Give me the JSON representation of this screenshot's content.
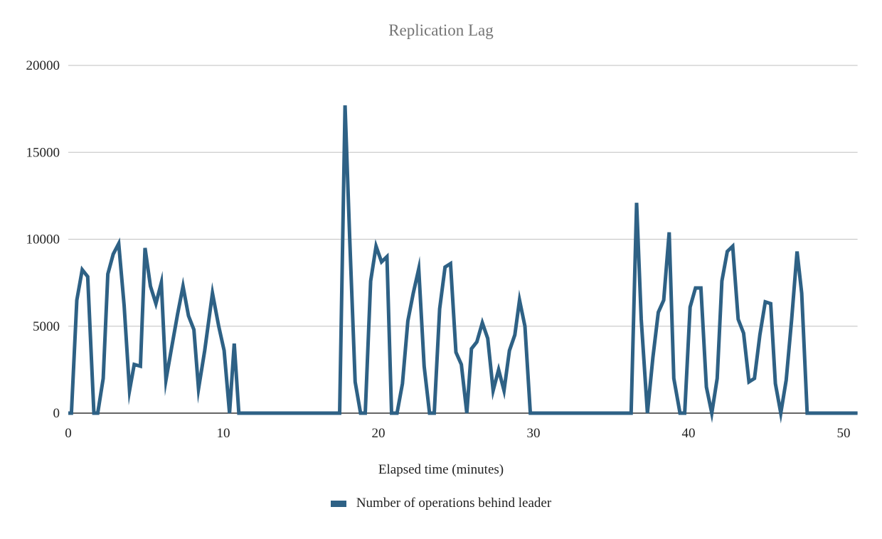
{
  "chart_data": {
    "type": "line",
    "title": "Replication Lag",
    "xlabel": "Elapsed time (minutes)",
    "ylabel": "",
    "xlim": [
      0,
      50.9
    ],
    "ylim": [
      0,
      20000
    ],
    "x_ticks": [
      0,
      10,
      20,
      30,
      40,
      50
    ],
    "y_ticks": [
      0,
      5000,
      10000,
      15000,
      20000
    ],
    "grid": {
      "horizontal": true,
      "vertical": false,
      "color": "#cccccc"
    },
    "legend_position": "bottom",
    "series": [
      {
        "name": "Number of operations behind leader",
        "color": "#2e6185",
        "points": [
          [
            0.0,
            0
          ],
          [
            0.2,
            0
          ],
          [
            0.55,
            6500
          ],
          [
            0.9,
            8250
          ],
          [
            1.25,
            7850
          ],
          [
            1.65,
            0
          ],
          [
            1.9,
            0
          ],
          [
            2.25,
            2000
          ],
          [
            2.55,
            8000
          ],
          [
            2.9,
            9150
          ],
          [
            3.25,
            9750
          ],
          [
            3.6,
            6200
          ],
          [
            3.95,
            1300
          ],
          [
            4.25,
            2800
          ],
          [
            4.65,
            2700
          ],
          [
            4.95,
            9500
          ],
          [
            5.3,
            7300
          ],
          [
            5.65,
            6300
          ],
          [
            6.0,
            7500
          ],
          [
            6.3,
            1900
          ],
          [
            6.65,
            3700
          ],
          [
            7.05,
            5700
          ],
          [
            7.4,
            7300
          ],
          [
            7.75,
            5600
          ],
          [
            8.1,
            4800
          ],
          [
            8.4,
            1400
          ],
          [
            8.8,
            3600
          ],
          [
            9.3,
            6900
          ],
          [
            9.7,
            5000
          ],
          [
            10.05,
            3600
          ],
          [
            10.4,
            0
          ],
          [
            10.7,
            4000
          ],
          [
            11.0,
            0
          ],
          [
            17.5,
            0
          ],
          [
            17.85,
            17700
          ],
          [
            18.15,
            10000
          ],
          [
            18.5,
            1800
          ],
          [
            18.85,
            0
          ],
          [
            19.15,
            0
          ],
          [
            19.5,
            7600
          ],
          [
            19.85,
            9600
          ],
          [
            20.2,
            8700
          ],
          [
            20.55,
            9000
          ],
          [
            20.85,
            0
          ],
          [
            21.2,
            0
          ],
          [
            21.55,
            1700
          ],
          [
            21.9,
            5300
          ],
          [
            22.25,
            6900
          ],
          [
            22.6,
            8300
          ],
          [
            22.95,
            2700
          ],
          [
            23.3,
            0
          ],
          [
            23.6,
            0
          ],
          [
            23.95,
            6000
          ],
          [
            24.3,
            8400
          ],
          [
            24.65,
            8600
          ],
          [
            25.0,
            3500
          ],
          [
            25.35,
            2800
          ],
          [
            25.7,
            0
          ],
          [
            26.0,
            3700
          ],
          [
            26.35,
            4100
          ],
          [
            26.7,
            5200
          ],
          [
            27.05,
            4300
          ],
          [
            27.4,
            1300
          ],
          [
            27.75,
            2500
          ],
          [
            28.1,
            1300
          ],
          [
            28.45,
            3600
          ],
          [
            28.8,
            4500
          ],
          [
            29.1,
            6500
          ],
          [
            29.45,
            5000
          ],
          [
            29.8,
            0
          ],
          [
            36.3,
            0
          ],
          [
            36.65,
            12100
          ],
          [
            36.95,
            5400
          ],
          [
            37.35,
            0
          ],
          [
            37.7,
            3200
          ],
          [
            38.05,
            5800
          ],
          [
            38.4,
            6500
          ],
          [
            38.75,
            10400
          ],
          [
            39.05,
            2000
          ],
          [
            39.45,
            0
          ],
          [
            39.75,
            0
          ],
          [
            40.1,
            6100
          ],
          [
            40.45,
            7200
          ],
          [
            40.8,
            7200
          ],
          [
            41.15,
            1500
          ],
          [
            41.5,
            0
          ],
          [
            41.85,
            2000
          ],
          [
            42.15,
            7600
          ],
          [
            42.5,
            9300
          ],
          [
            42.85,
            9600
          ],
          [
            43.2,
            5400
          ],
          [
            43.55,
            4600
          ],
          [
            43.9,
            1800
          ],
          [
            44.25,
            2000
          ],
          [
            44.6,
            4500
          ],
          [
            44.95,
            6400
          ],
          [
            45.3,
            6300
          ],
          [
            45.6,
            1700
          ],
          [
            45.95,
            0
          ],
          [
            46.3,
            1900
          ],
          [
            46.65,
            5400
          ],
          [
            47.0,
            9300
          ],
          [
            47.3,
            6900
          ],
          [
            47.65,
            0
          ],
          [
            50.9,
            0
          ]
        ]
      }
    ]
  },
  "labels": {
    "title": "Replication Lag",
    "x_axis": "Elapsed time (minutes)",
    "legend_item": "Number of operations behind leader",
    "y_ticks": [
      "0",
      "5000",
      "10000",
      "15000",
      "20000"
    ],
    "x_ticks": [
      "0",
      "10",
      "20",
      "30",
      "40",
      "50"
    ]
  }
}
